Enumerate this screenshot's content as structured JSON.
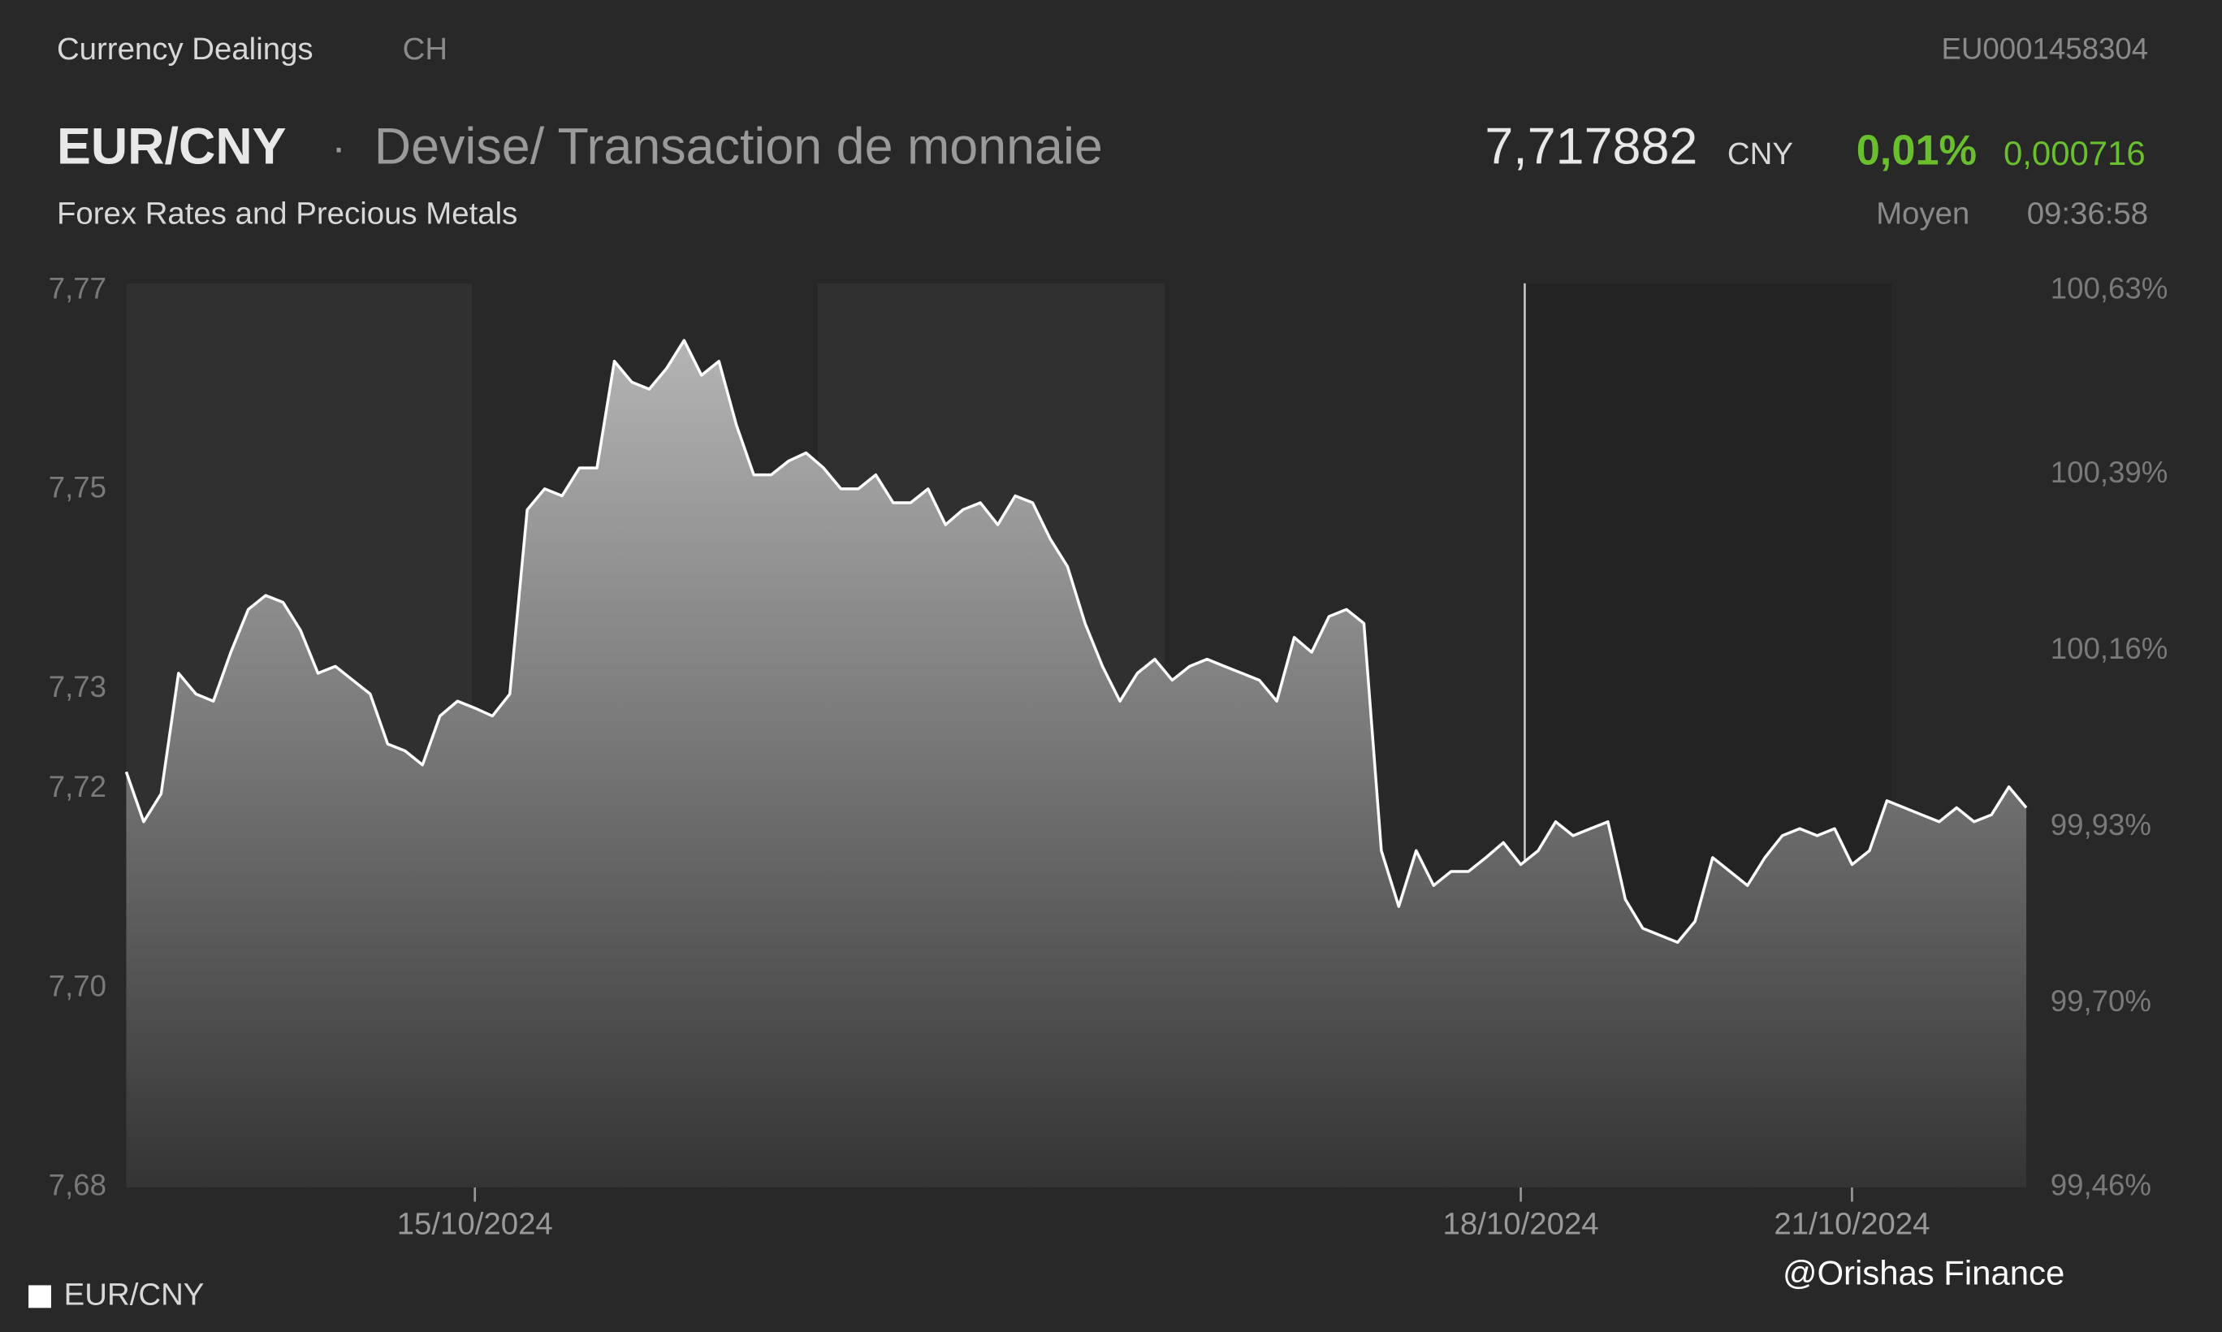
{
  "header": {
    "section": "Currency Dealings",
    "region": "CH",
    "isin": "EU0001458304",
    "pair": "EUR/CNY",
    "separator": "·",
    "description": "Devise/ Transaction de monnaie",
    "price": "7,717882",
    "currency": "CNY",
    "change_pct": "0,01%",
    "change_abs": "0,000716",
    "subtitle": "Forex Rates and Precious Metals",
    "price_type": "Moyen",
    "time": "09:36:58"
  },
  "watermark": "@Orishas Finance",
  "chart_data": {
    "type": "area",
    "categories": [
      null,
      null,
      null,
      null,
      null,
      null,
      null,
      null,
      null,
      null,
      null,
      null,
      null,
      null,
      null,
      null,
      null,
      null,
      null,
      null,
      "15/10/2024",
      null,
      null,
      null,
      null,
      null,
      null,
      null,
      null,
      null,
      null,
      null,
      null,
      null,
      null,
      null,
      null,
      null,
      null,
      null,
      null,
      null,
      null,
      null,
      null,
      null,
      null,
      null,
      null,
      null,
      null,
      null,
      null,
      null,
      null,
      null,
      null,
      null,
      null,
      null,
      null,
      null,
      null,
      null,
      null,
      null,
      null,
      null,
      null,
      null,
      null,
      null,
      null,
      null,
      null,
      null,
      null,
      null,
      null,
      null,
      "18/10/2024",
      null,
      null,
      null,
      null,
      null,
      null,
      null,
      null,
      null,
      null,
      null,
      null,
      null,
      null,
      null,
      null,
      null,
      null,
      "21/10/2024",
      null,
      null,
      null,
      null,
      null,
      null,
      null,
      null,
      null,
      null
    ],
    "series": [
      {
        "name": "EUR/CNY",
        "color": "#ffffff",
        "values": [
          7.7217,
          7.7167,
          7.7195,
          7.7316,
          7.7295,
          7.7288,
          7.7337,
          7.738,
          7.7394,
          7.7387,
          7.7359,
          7.7316,
          7.7323,
          7.7309,
          7.7295,
          7.7245,
          7.7238,
          7.7224,
          7.7273,
          7.7288,
          7.7281,
          7.7273,
          7.7295,
          7.748,
          7.7501,
          7.7494,
          7.7522,
          7.7522,
          7.7629,
          7.7608,
          7.7601,
          7.7622,
          7.765,
          7.7615,
          7.7629,
          7.7565,
          7.7515,
          7.7515,
          7.7529,
          7.7537,
          7.7522,
          7.7501,
          7.7501,
          7.7515,
          7.7487,
          7.7487,
          7.7501,
          7.7465,
          7.748,
          7.7487,
          7.7465,
          7.7494,
          7.7487,
          7.7451,
          7.7423,
          7.7366,
          7.7323,
          7.7288,
          7.7316,
          7.733,
          7.7309,
          7.7323,
          7.733,
          7.7323,
          7.7316,
          7.7309,
          7.7288,
          7.7352,
          7.7337,
          7.7373,
          7.738,
          7.7366,
          7.7138,
          7.7082,
          7.7138,
          7.7103,
          7.7117,
          7.7117,
          7.7131,
          7.7146,
          7.7124,
          7.7138,
          7.7167,
          7.7153,
          7.716,
          7.7167,
          7.7089,
          7.706,
          7.7053,
          7.7046,
          7.7067,
          7.7131,
          7.7117,
          7.7103,
          7.7131,
          7.7153,
          7.716,
          7.7153,
          7.716,
          7.7124,
          7.7138,
          7.7188,
          7.7181,
          7.7174,
          7.7167,
          7.7181,
          7.7167,
          7.7174,
          7.7202,
          7.7181
        ]
      }
    ],
    "ylim": [
      7.68,
      7.77
    ],
    "yticks": [
      {
        "value": 7.77,
        "label": "7,77"
      },
      {
        "value": 7.75,
        "label": "7,75"
      },
      {
        "value": 7.73,
        "label": "7,73"
      },
      {
        "value": 7.72,
        "label": "7,72"
      },
      {
        "value": 7.7,
        "label": "7,70"
      },
      {
        "value": 7.68,
        "label": "7,68"
      }
    ],
    "y2lim": [
      99.46,
      100.63
    ],
    "y2ticks": [
      {
        "value": 100.63,
        "label": "100,63%"
      },
      {
        "value": 100.39,
        "label": "100,39%"
      },
      {
        "value": 100.16,
        "label": "100,16%"
      },
      {
        "value": 99.93,
        "label": "99,93%"
      },
      {
        "value": 99.7,
        "label": "99,70%"
      },
      {
        "value": 99.46,
        "label": "99,46%"
      }
    ],
    "legend": "bottom-left"
  }
}
